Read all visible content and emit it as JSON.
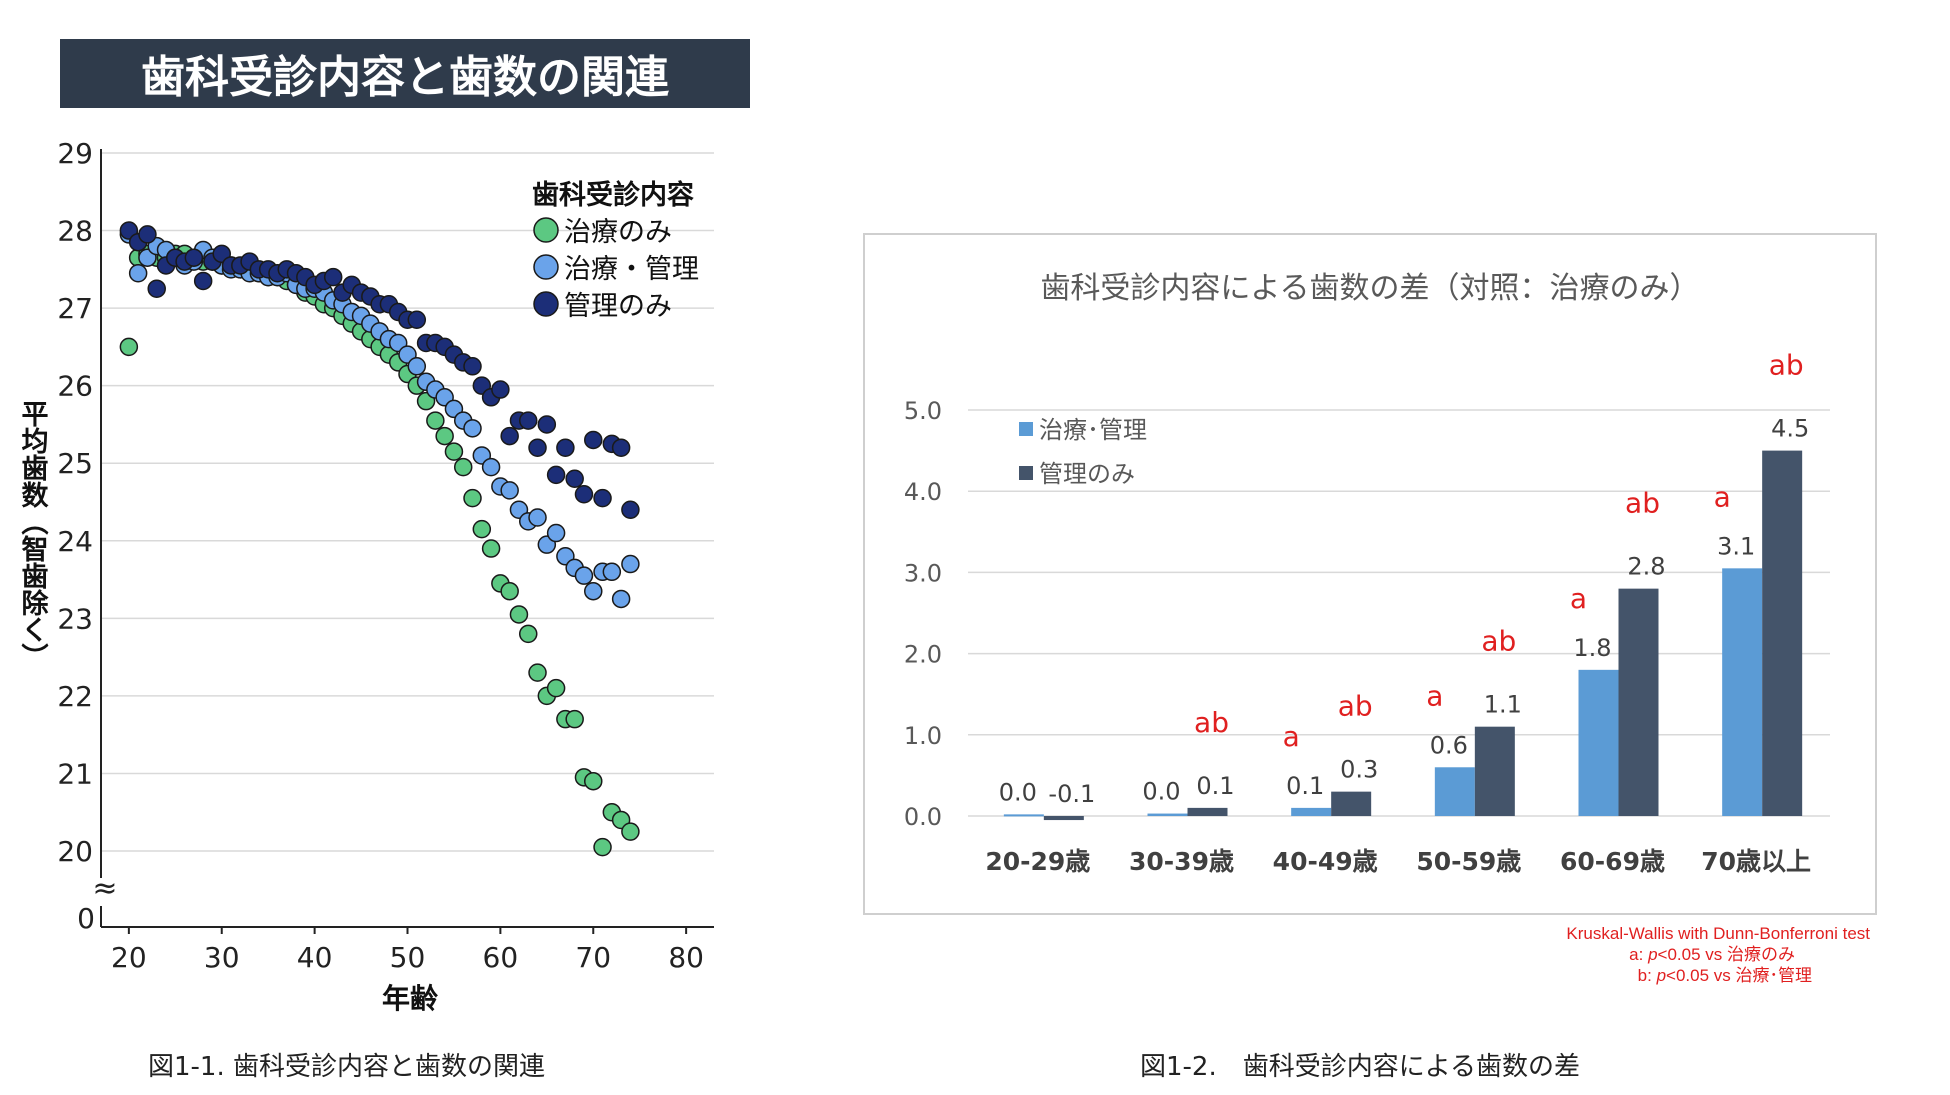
{
  "figure1": {
    "banner_title": "歯科受診内容と歯数の関連",
    "caption": "図1-1. 歯科受診内容と歯数の関連",
    "legend_title": "歯科受診内容",
    "ylabel": "平均歯数（智歯除く）",
    "xlabel": "年齢",
    "axis_break_symbol": "≈",
    "colors": {
      "series1": "#5cc882",
      "series2": "#6aa3ea",
      "series3": "#1c2e78"
    }
  },
  "figure2": {
    "caption": "図1-2.　歯科受診内容による歯数の差",
    "panel_title": "歯科受診内容による歯数の差（対照：治療のみ）",
    "stats_note": {
      "line1": "Kruskal-Wallis with Dunn-Bonferroni test",
      "line2_prefix": "a: ",
      "line2_p": "p",
      "line2_rest": "<0.05 vs 治療のみ",
      "line3_prefix": "b: ",
      "line3_p": "p",
      "line3_rest": "<0.05 vs 治療･管理"
    },
    "colors": {
      "series1": "#5b9bd5",
      "series2": "#44546a",
      "sig": "#e02020"
    }
  },
  "chart_data": [
    {
      "type": "scatter",
      "title": "歯科受診内容と歯数の関連",
      "xlabel": "年齢",
      "ylabel": "平均歯数（智歯除く）",
      "xlim": [
        17,
        83
      ],
      "ylim": [
        19.6,
        29
      ],
      "xticks": [
        "20",
        "30",
        "40",
        "50",
        "60",
        "70",
        "80"
      ],
      "yticks": [
        "20",
        "21",
        "22",
        "23",
        "24",
        "25",
        "26",
        "27",
        "28",
        "29"
      ],
      "ybreak_label": "0",
      "grid": true,
      "legend_position": "top-right",
      "series": [
        {
          "name": "治療のみ",
          "x": [
            20,
            21,
            22,
            23,
            24,
            25,
            26,
            27,
            28,
            29,
            30,
            31,
            32,
            33,
            34,
            35,
            36,
            37,
            38,
            39,
            40,
            41,
            42,
            43,
            44,
            45,
            46,
            47,
            48,
            49,
            50,
            51,
            52,
            53,
            54,
            55,
            56,
            57,
            58,
            59,
            60,
            61,
            62,
            63,
            64,
            65,
            66,
            67,
            68,
            69,
            70,
            71,
            72,
            73,
            74
          ],
          "y": [
            26.5,
            27.65,
            27.7,
            27.65,
            27.65,
            27.7,
            27.7,
            27.65,
            27.6,
            27.6,
            27.55,
            27.55,
            27.5,
            27.5,
            27.45,
            27.4,
            27.4,
            27.35,
            27.3,
            27.2,
            27.15,
            27.05,
            27.0,
            26.9,
            26.8,
            26.7,
            26.6,
            26.5,
            26.4,
            26.3,
            26.15,
            26.0,
            25.8,
            25.55,
            25.35,
            25.15,
            24.95,
            24.55,
            24.15,
            23.9,
            23.45,
            23.35,
            23.05,
            22.8,
            22.3,
            22.0,
            22.1,
            21.7,
            21.7,
            20.95,
            20.9,
            20.05,
            20.5,
            20.4,
            20.25
          ]
        },
        {
          "name": "治療・管理",
          "x": [
            20,
            21,
            22,
            23,
            24,
            25,
            26,
            27,
            28,
            29,
            30,
            31,
            32,
            33,
            34,
            35,
            36,
            37,
            38,
            39,
            40,
            41,
            42,
            43,
            44,
            45,
            46,
            47,
            48,
            49,
            50,
            51,
            52,
            53,
            54,
            55,
            56,
            57,
            58,
            59,
            60,
            61,
            62,
            63,
            64,
            65,
            66,
            67,
            68,
            69,
            70,
            71,
            72,
            73,
            74
          ],
          "y": [
            27.95,
            27.45,
            27.65,
            27.8,
            27.75,
            27.65,
            27.55,
            27.6,
            27.75,
            27.65,
            27.55,
            27.5,
            27.5,
            27.45,
            27.45,
            27.4,
            27.4,
            27.45,
            27.3,
            27.25,
            27.25,
            27.2,
            27.1,
            27.05,
            26.95,
            26.9,
            26.8,
            26.7,
            26.6,
            26.55,
            26.4,
            26.25,
            26.05,
            25.95,
            25.85,
            25.7,
            25.55,
            25.45,
            25.1,
            24.95,
            24.7,
            24.65,
            24.4,
            24.25,
            24.3,
            23.95,
            24.1,
            23.8,
            23.65,
            23.55,
            23.35,
            23.6,
            23.6,
            23.25,
            23.7
          ]
        },
        {
          "name": "管理のみ",
          "x": [
            20,
            21,
            22,
            23,
            24,
            25,
            26,
            27,
            28,
            29,
            30,
            31,
            32,
            33,
            34,
            35,
            36,
            37,
            38,
            39,
            40,
            41,
            42,
            43,
            44,
            45,
            46,
            47,
            48,
            49,
            50,
            51,
            52,
            53,
            54,
            55,
            56,
            57,
            58,
            59,
            60,
            61,
            62,
            63,
            64,
            65,
            66,
            67,
            68,
            69,
            70,
            71,
            72,
            73,
            74
          ],
          "y": [
            28.0,
            27.85,
            27.95,
            27.25,
            27.55,
            27.65,
            27.6,
            27.65,
            27.35,
            27.6,
            27.7,
            27.55,
            27.55,
            27.6,
            27.5,
            27.5,
            27.45,
            27.5,
            27.45,
            27.4,
            27.3,
            27.35,
            27.4,
            27.2,
            27.3,
            27.2,
            27.15,
            27.05,
            27.05,
            26.95,
            26.85,
            26.85,
            26.55,
            26.55,
            26.5,
            26.4,
            26.3,
            26.25,
            26.0,
            25.85,
            25.95,
            25.35,
            25.55,
            25.55,
            25.2,
            25.5,
            24.85,
            25.2,
            24.8,
            24.6,
            25.3,
            24.55,
            25.25,
            25.2,
            24.4
          ]
        }
      ]
    },
    {
      "type": "bar",
      "title": "歯科受診内容による歯数の差（対照：治療のみ）",
      "categories": [
        "20-29歳",
        "30-39歳",
        "40-49歳",
        "50-59歳",
        "60-69歳",
        "70歳以上"
      ],
      "ylim": [
        0.0,
        5.0
      ],
      "yticks": [
        "0.0",
        "1.0",
        "2.0",
        "3.0",
        "4.0",
        "5.0"
      ],
      "grid": true,
      "legend_position": "top-left",
      "series": [
        {
          "name": "治療･管理",
          "values": [
            0.02,
            0.03,
            0.1,
            0.6,
            1.8,
            3.05
          ],
          "labels": [
            "0.0",
            "0.0",
            "0.1",
            "0.6",
            "1.8",
            "3.1"
          ],
          "sig": [
            "",
            "",
            "a",
            "a",
            "a",
            "a"
          ]
        },
        {
          "name": "管理のみ",
          "values": [
            -0.05,
            0.1,
            0.3,
            1.1,
            2.8,
            4.5
          ],
          "labels": [
            "-0.1",
            "0.1",
            "0.3",
            "1.1",
            "2.8",
            "4.5"
          ],
          "sig": [
            "",
            "ab",
            "ab",
            "ab",
            "ab",
            "ab"
          ]
        }
      ]
    }
  ]
}
